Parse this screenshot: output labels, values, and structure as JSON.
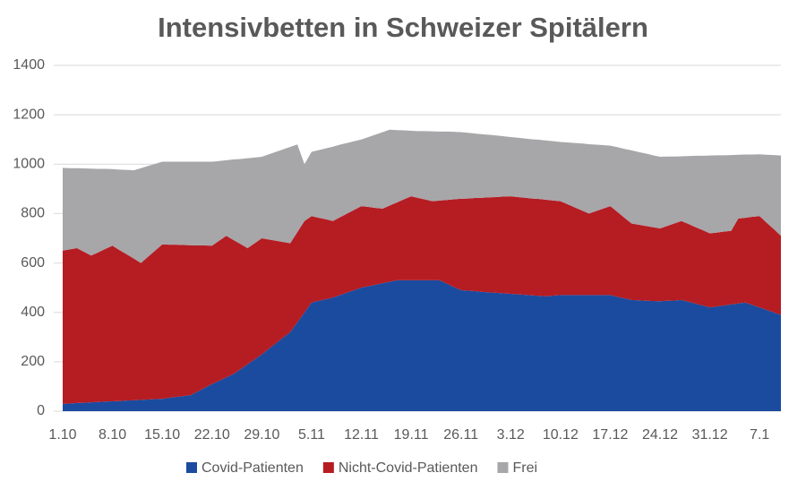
{
  "chart_data": {
    "type": "stacked_area",
    "title": "Intensivbetten in Schweizer Spitälern",
    "categories": [
      "1.10",
      null,
      null,
      null,
      null,
      null,
      null,
      "8.10",
      null,
      null,
      null,
      null,
      null,
      null,
      "15.10",
      null,
      null,
      null,
      null,
      null,
      null,
      "22.10",
      null,
      null,
      null,
      null,
      null,
      null,
      "29.10",
      null,
      null,
      null,
      null,
      null,
      null,
      "5.11",
      null,
      null,
      null,
      null,
      null,
      null,
      "12.11",
      null,
      null,
      null,
      null,
      null,
      null,
      "19.11",
      null,
      null,
      null,
      null,
      null,
      null,
      "26.11",
      null,
      null,
      null,
      null,
      null,
      null,
      "3.12",
      null,
      null,
      null,
      null,
      null,
      null,
      "10.12",
      null,
      null,
      null,
      null,
      null,
      null,
      "17.12",
      null,
      null,
      null,
      null,
      null,
      null,
      "24.12",
      null,
      null,
      null,
      null,
      null,
      null,
      "31.12",
      null,
      null,
      null,
      null,
      null,
      null,
      "7.1",
      null,
      null,
      null
    ],
    "series": [
      {
        "name": "Covid-Patienten",
        "color": "#1b4b9f",
        "values": [
          30,
          31,
          33,
          34,
          36,
          37,
          39,
          40,
          41,
          43,
          44,
          46,
          47,
          49,
          50,
          54,
          58,
          61,
          65,
          80,
          95,
          110,
          123,
          137,
          150,
          170,
          190,
          210,
          230,
          253,
          275,
          298,
          320,
          360,
          400,
          440,
          447,
          453,
          460,
          470,
          480,
          490,
          500,
          506,
          512,
          518,
          524,
          530,
          530,
          530,
          530,
          530,
          530,
          530,
          517,
          503,
          490,
          488,
          486,
          483,
          481,
          479,
          477,
          475,
          473,
          471,
          469,
          467,
          465,
          468,
          470,
          470,
          470,
          470,
          470,
          470,
          470,
          470,
          463,
          457,
          450,
          449,
          447,
          446,
          445,
          447,
          448,
          450,
          443,
          435,
          428,
          420,
          424,
          428,
          432,
          436,
          440,
          430,
          420,
          410,
          400,
          390
        ]
      },
      {
        "name": "Nicht-Covid-Patienten",
        "color": "#b51d23",
        "values": [
          620,
          624,
          627,
          611,
          594,
          606,
          618,
          630,
          611,
          592,
          574,
          554,
          578,
          601,
          625,
          620,
          616,
          612,
          607,
          591,
          576,
          560,
          567,
          573,
          543,
          507,
          470,
          470,
          470,
          442,
          415,
          387,
          360,
          365,
          370,
          350,
          336,
          324,
          310,
          315,
          320,
          325,
          330,
          321,
          311,
          302,
          309,
          315,
          328,
          340,
          333,
          327,
          320,
          323,
          338,
          355,
          370,
          373,
          377,
          381,
          385,
          388,
          392,
          395,
          394,
          393,
          392,
          392,
          391,
          385,
          380,
          368,
          355,
          343,
          330,
          340,
          350,
          360,
          344,
          326,
          310,
          306,
          303,
          299,
          295,
          303,
          312,
          320,
          315,
          310,
          305,
          300,
          299,
          299,
          298,
          344,
          343,
          357,
          370,
          353,
          337,
          320
        ]
      },
      {
        "name": "Frei",
        "color": "#a7a6a9",
        "values": [
          335,
          329,
          324,
          338,
          352,
          338,
          324,
          310,
          326,
          342,
          357,
          384,
          368,
          351,
          335,
          336,
          336,
          337,
          338,
          339,
          339,
          340,
          323,
          306,
          326,
          344,
          364,
          347,
          330,
          345,
          360,
          375,
          390,
          355,
          230,
          260,
          274,
          287,
          301,
          294,
          286,
          278,
          270,
          283,
          297,
          310,
          307,
          293,
          279,
          265,
          271,
          277,
          283,
          279,
          277,
          273,
          270,
          266,
          261,
          257,
          253,
          249,
          244,
          240,
          240,
          240,
          240,
          240,
          240,
          240,
          240,
          250,
          261,
          271,
          281,
          269,
          257,
          245,
          262,
          279,
          296,
          294,
          293,
          291,
          290,
          281,
          271,
          262,
          275,
          289,
          301,
          315,
          313,
          309,
          307,
          258,
          256,
          252,
          250,
          275,
          300,
          325
        ]
      }
    ],
    "ylim": [
      0,
      1400
    ],
    "yticks": [
      0,
      200,
      400,
      600,
      800,
      1000,
      1200,
      1400
    ],
    "grid": true,
    "legend": "bottom"
  }
}
